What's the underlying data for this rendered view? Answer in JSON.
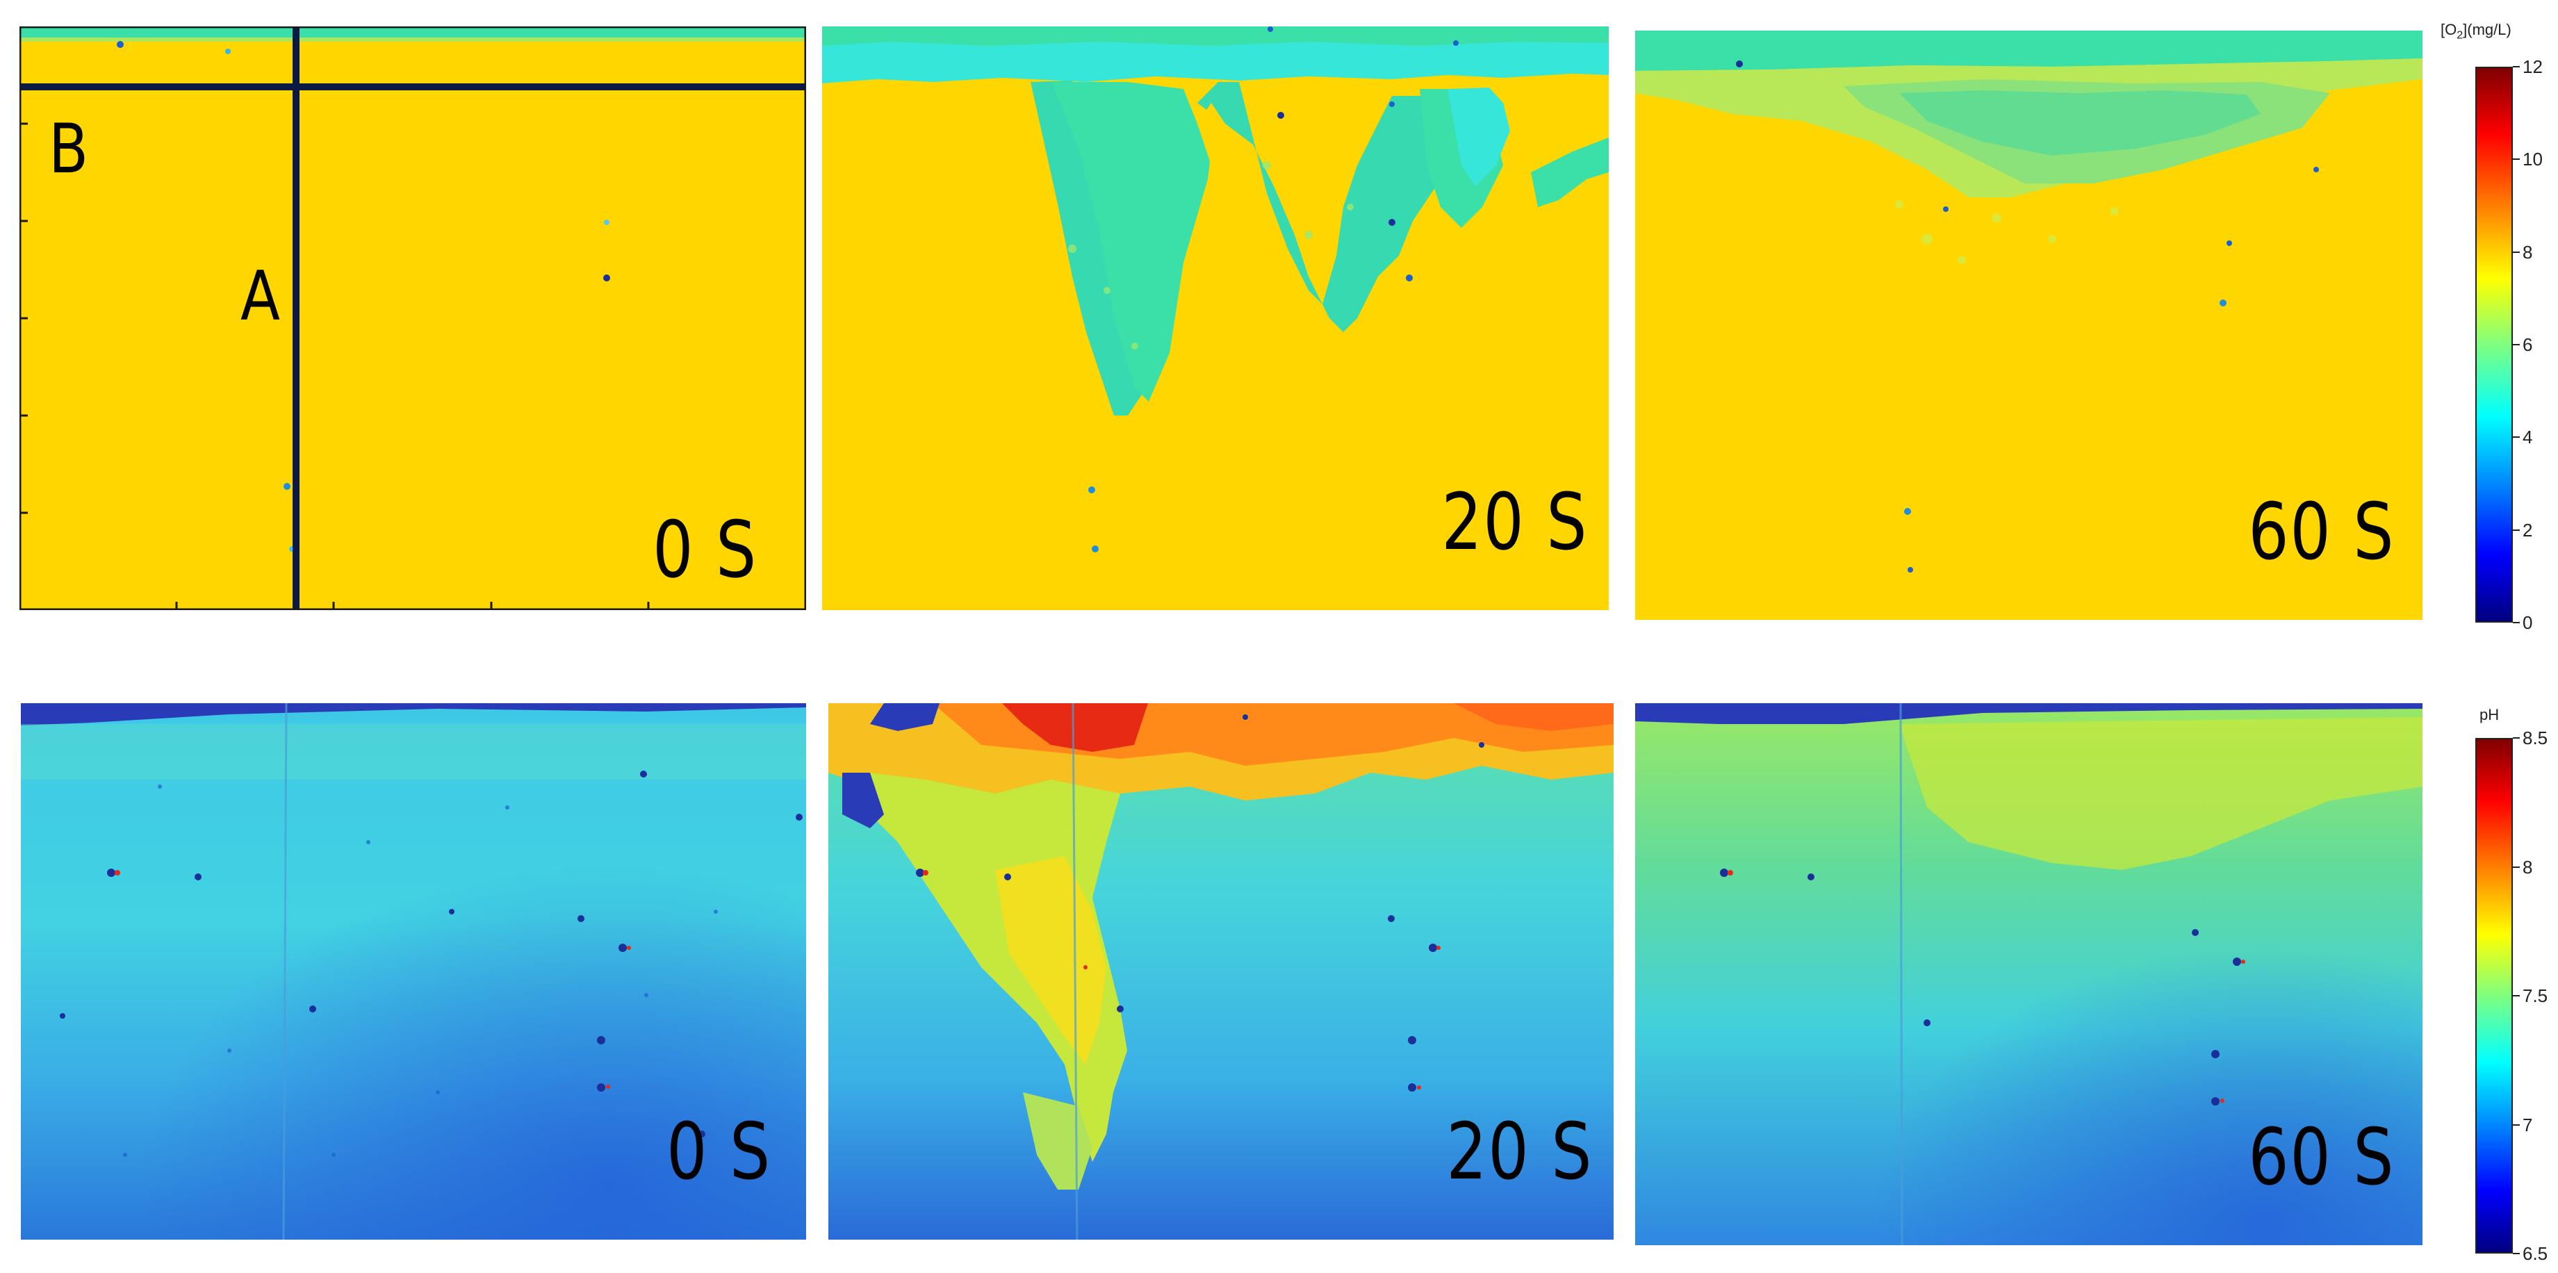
{
  "oxygen_row": {
    "panels": [
      {
        "time_label": "0 S"
      },
      {
        "time_label": "20 S"
      },
      {
        "time_label": "60 S"
      }
    ],
    "crosshair_labels": {
      "vertical_line": "A",
      "horizontal_line": "B"
    },
    "colorbar": {
      "title": "[O",
      "title_sub": "2",
      "title_rest": "](mg/L)",
      "ticks": [
        "12",
        "10",
        "8",
        "6",
        "4",
        "2",
        "0"
      ],
      "range": [
        0,
        12
      ]
    }
  },
  "ph_row": {
    "panels": [
      {
        "time_label": "0 S"
      },
      {
        "time_label": "20 S"
      },
      {
        "time_label": "60 S"
      }
    ],
    "colorbar": {
      "title": "pH",
      "ticks": [
        "8.5",
        "8",
        "7.5",
        "7",
        "6.5"
      ],
      "range": [
        6.5,
        8.5
      ]
    }
  },
  "colormap": "jet",
  "colors": {
    "yellow_background": "#ffd600",
    "cyan_green": "#3be0a8",
    "light_cyan": "#36e6d8",
    "blue_dark": "#1a2f9a",
    "red": "#e62a14",
    "orange": "#ff8a1a",
    "crosshair": "#0b1a45"
  }
}
